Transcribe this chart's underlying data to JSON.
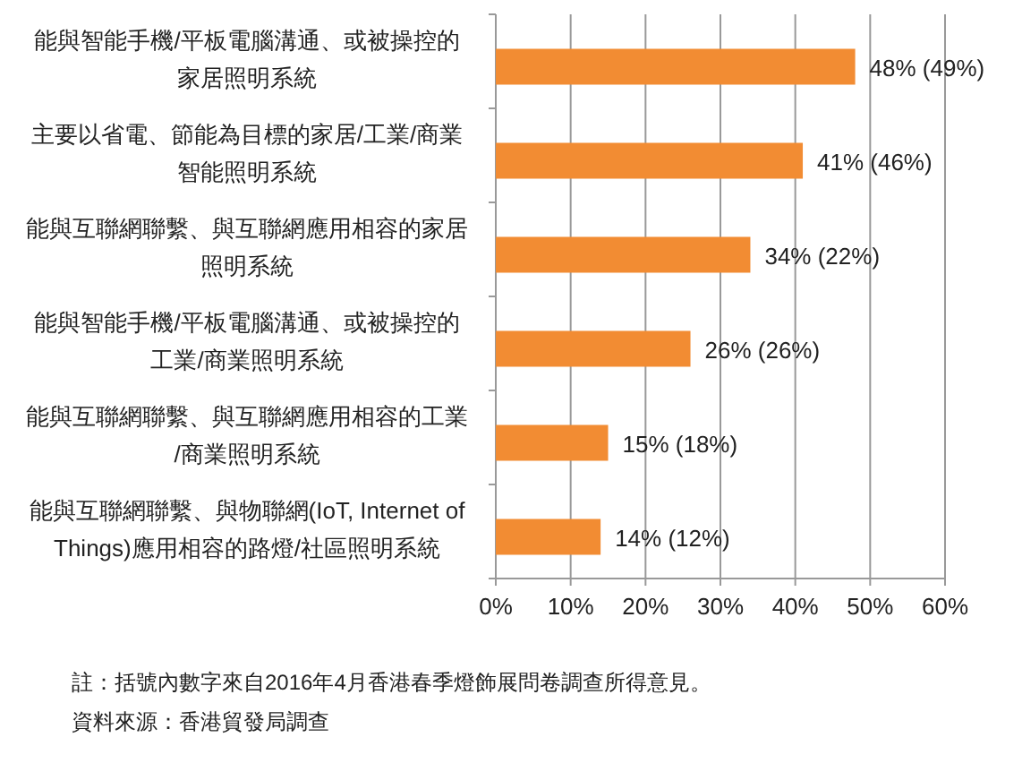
{
  "chart_data": {
    "type": "bar",
    "orientation": "horizontal",
    "categories": [
      "能與智能手機/平板電腦溝通、或被操控的家居照明系統",
      "主要以省電、節能為目標的家居/工業/商業智能照明系統",
      "能與互聯網聯繫、與互聯網應用相容的家居照明系統",
      "能與智能手機/平板電腦溝通、或被操控的工業/商業照明系統",
      "能與互聯網聯繫、與互聯網應用相容的工業/商業照明系統",
      "能與互聯網聯繫、與物聯網(IoT, Internet of Things)應用相容的路燈/社區照明系統"
    ],
    "values": [
      48,
      41,
      34,
      26,
      15,
      14
    ],
    "value_labels": [
      "48% (49%)",
      "41% (46%)",
      "34% (22%)",
      "26% (26%)",
      "15% (18%)",
      "14% (12%)"
    ],
    "color": "#f28c33",
    "xlim": [
      0,
      60
    ],
    "xticks": [
      {
        "value": 0,
        "label": "0%"
      },
      {
        "value": 10,
        "label": "10%"
      },
      {
        "value": 20,
        "label": "20%"
      },
      {
        "value": 30,
        "label": "30%"
      },
      {
        "value": 40,
        "label": "40%"
      },
      {
        "value": 50,
        "label": "50%"
      },
      {
        "value": 60,
        "label": "60%"
      }
    ],
    "grid": "x",
    "annotations": [
      "註：括號內數字來自2016年4月香港春季燈飾展問卷調查所得意見。",
      "資料來源：香港貿發局調查"
    ]
  }
}
